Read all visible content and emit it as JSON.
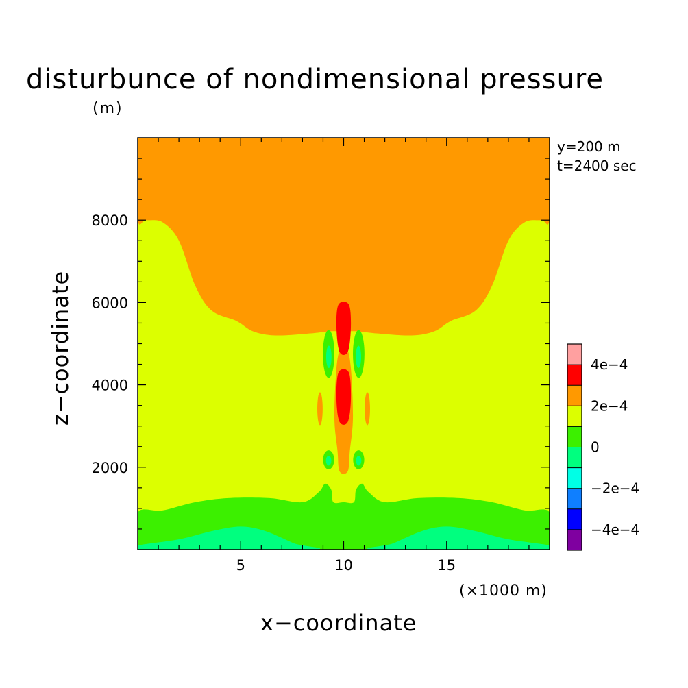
{
  "chart_data": {
    "type": "heatmap",
    "title": "disturbunce of nondimensional pressure",
    "xlabel": "x−coordinate",
    "ylabel": "z−coordinate",
    "x_unit": "(×1000 m)",
    "y_unit": "(m)",
    "annotations": [
      "y=200 m",
      "t=2400 sec"
    ],
    "xlim": [
      0,
      20
    ],
    "ylim": [
      0,
      10000
    ],
    "x_ticks": [
      5,
      10,
      15
    ],
    "y_ticks": [
      2000,
      4000,
      6000,
      8000
    ],
    "grid": false,
    "colorbar": {
      "placement": "right",
      "range": [
        -0.0005,
        0.0005
      ],
      "levels": [
        {
          "min": -0.0005,
          "max": -0.0004,
          "color": "#7f00a0"
        },
        {
          "min": -0.0004,
          "max": -0.0003,
          "color": "#0000ff"
        },
        {
          "min": -0.0003,
          "max": -0.0002,
          "color": "#0f7fff"
        },
        {
          "min": -0.0002,
          "max": -0.0001,
          "color": "#00ffe6"
        },
        {
          "min": -0.0001,
          "max": 0.0,
          "color": "#00ff7f"
        },
        {
          "min": 0.0,
          "max": 0.0001,
          "color": "#3cf000"
        },
        {
          "min": 0.0001,
          "max": 0.0002,
          "color": "#dcff00"
        },
        {
          "min": 0.0002,
          "max": 0.0003,
          "color": "#ff9900"
        },
        {
          "min": 0.0003,
          "max": 0.0004,
          "color": "#ff0000"
        },
        {
          "min": 0.0004,
          "max": 0.0005,
          "color": "#ffa0a0"
        }
      ],
      "tick_labels": [
        "−4e−4",
        "−2e−4",
        "0",
        "2e−4",
        "4e−4"
      ],
      "tick_values": [
        -0.0004,
        -0.0002,
        0,
        0.0002,
        0.0004
      ]
    },
    "regions": [
      {
        "name": "upper-high-pressure",
        "level": "2e-4 to 3e-4",
        "color": "#ff9900",
        "polygon": [
          [
            0,
            10000
          ],
          [
            20,
            10000
          ],
          [
            20,
            8050
          ],
          [
            19.6,
            8000
          ],
          [
            18.8,
            7950
          ],
          [
            18.0,
            7500
          ],
          [
            17.2,
            6400
          ],
          [
            16.4,
            5800
          ],
          [
            15.2,
            5550
          ],
          [
            14.4,
            5300
          ],
          [
            13.3,
            5200
          ],
          [
            11.6,
            5250
          ],
          [
            10.7,
            5300
          ],
          [
            10,
            5300
          ],
          [
            9.3,
            5300
          ],
          [
            8.4,
            5250
          ],
          [
            6.7,
            5200
          ],
          [
            5.6,
            5300
          ],
          [
            4.8,
            5550
          ],
          [
            3.6,
            5800
          ],
          [
            2.8,
            6400
          ],
          [
            2.0,
            7500
          ],
          [
            1.2,
            7950
          ],
          [
            0.4,
            8000
          ],
          [
            0,
            8050
          ]
        ]
      },
      {
        "name": "lower-neutral-band",
        "level": "0 to 1e-4",
        "color": "#3cf000",
        "polygon": [
          [
            0,
            0
          ],
          [
            20,
            0
          ],
          [
            20,
            900
          ],
          [
            18.8,
            950
          ],
          [
            17.2,
            1150
          ],
          [
            15.6,
            1250
          ],
          [
            13.6,
            1250
          ],
          [
            12.0,
            1150
          ],
          [
            11.2,
            1400
          ],
          [
            10.9,
            1600
          ],
          [
            10.6,
            1450
          ],
          [
            10.5,
            1150
          ],
          [
            10,
            1150
          ],
          [
            9.5,
            1150
          ],
          [
            9.4,
            1450
          ],
          [
            9.1,
            1600
          ],
          [
            8.8,
            1400
          ],
          [
            8.0,
            1150
          ],
          [
            6.4,
            1250
          ],
          [
            4.4,
            1250
          ],
          [
            2.8,
            1150
          ],
          [
            1.2,
            950
          ],
          [
            0,
            900
          ]
        ]
      },
      {
        "name": "surface-low-pressure-left",
        "level": "-1e-4 to 0",
        "color": "#00ff7f",
        "polygon": [
          [
            0,
            0
          ],
          [
            0,
            100
          ],
          [
            2.0,
            250
          ],
          [
            3.6,
            450
          ],
          [
            5.0,
            560
          ],
          [
            6.2,
            450
          ],
          [
            7.6,
            150
          ],
          [
            8.4,
            0
          ]
        ]
      },
      {
        "name": "surface-low-pressure-right",
        "level": "-1e-4 to 0",
        "color": "#00ff7f",
        "polygon": [
          [
            20,
            0
          ],
          [
            20,
            100
          ],
          [
            18.0,
            250
          ],
          [
            16.4,
            450
          ],
          [
            15.0,
            560
          ],
          [
            13.8,
            450
          ],
          [
            12.4,
            150
          ],
          [
            11.6,
            0
          ]
        ]
      },
      {
        "name": "central-column",
        "level": "2e-4 to 3e-4",
        "color": "#ff9900",
        "polygon": [
          [
            9.85,
            4900
          ],
          [
            9.65,
            4400
          ],
          [
            9.55,
            3200
          ],
          [
            9.7,
            2400
          ],
          [
            9.8,
            1900
          ],
          [
            10.2,
            1900
          ],
          [
            10.3,
            2400
          ],
          [
            10.45,
            3200
          ],
          [
            10.35,
            4400
          ],
          [
            10.15,
            4900
          ]
        ]
      },
      {
        "name": "upper-red-core",
        "level": "3e-4 to 4e-4",
        "color": "#ff0000",
        "polygon": [
          [
            9.75,
            5950
          ],
          [
            10.25,
            5950
          ],
          [
            10.35,
            5400
          ],
          [
            10.2,
            4800
          ],
          [
            9.8,
            4800
          ],
          [
            9.65,
            5400
          ]
        ]
      },
      {
        "name": "lower-red-core",
        "level": "3e-4 to 4e-4",
        "color": "#ff0000",
        "polygon": [
          [
            9.75,
            4300
          ],
          [
            10.25,
            4300
          ],
          [
            10.35,
            3650
          ],
          [
            10.2,
            3100
          ],
          [
            9.8,
            3100
          ],
          [
            9.65,
            3650
          ]
        ]
      },
      {
        "name": "left-upper-vortex",
        "level": "0 to 1e-4",
        "color": "#3cf000",
        "ellipse": [
          9.27,
          4750,
          0.28,
          580
        ]
      },
      {
        "name": "left-upper-vortex-core",
        "level": "-1e-4 to 0",
        "color": "#00ff7f",
        "ellipse": [
          9.28,
          4680,
          0.13,
          270
        ]
      },
      {
        "name": "right-upper-vortex",
        "level": "0 to 1e-4",
        "color": "#3cf000",
        "ellipse": [
          10.73,
          4750,
          0.28,
          580
        ]
      },
      {
        "name": "right-upper-vortex-core",
        "level": "-1e-4 to 0",
        "color": "#00ff7f",
        "ellipse": [
          10.72,
          4680,
          0.13,
          270
        ]
      },
      {
        "name": "left-lower-vortex",
        "level": "0 to 1e-4",
        "color": "#3cf000",
        "ellipse": [
          9.27,
          2180,
          0.27,
          230
        ]
      },
      {
        "name": "left-lower-vortex-core",
        "level": "-1e-4 to 0",
        "color": "#00ff7f",
        "ellipse": [
          9.27,
          2160,
          0.13,
          120
        ]
      },
      {
        "name": "right-lower-vortex",
        "level": "0 to 1e-4",
        "color": "#3cf000",
        "ellipse": [
          10.73,
          2180,
          0.27,
          230
        ]
      },
      {
        "name": "right-lower-vortex-core",
        "level": "-1e-4 to 0",
        "color": "#00ff7f",
        "ellipse": [
          10.73,
          2160,
          0.13,
          120
        ]
      },
      {
        "name": "left-side-blob",
        "level": "2e-4 to 3e-4",
        "color": "#ff9900",
        "ellipse": [
          8.85,
          3420,
          0.13,
          400
        ]
      },
      {
        "name": "right-side-blob",
        "level": "2e-4 to 3e-4",
        "color": "#ff9900",
        "ellipse": [
          11.15,
          3420,
          0.13,
          400
        ]
      }
    ],
    "background_color": "#dcff00"
  }
}
